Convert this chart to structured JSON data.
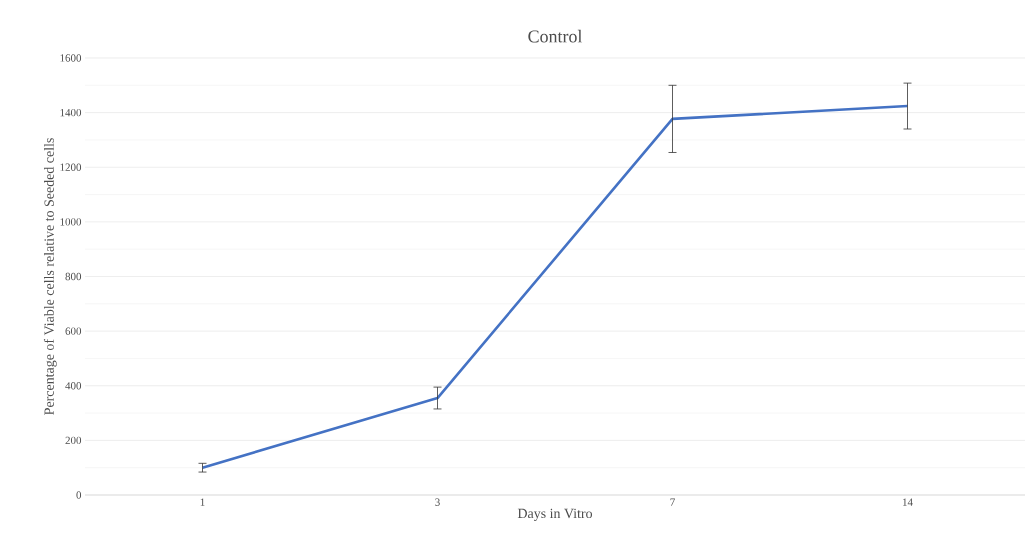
{
  "chart_data": {
    "type": "line",
    "title": "Control",
    "xlabel": "Days in Vitro",
    "ylabel": "Percentage of Viable cells relative to Seeded cells",
    "categories": [
      "1",
      "3",
      "7",
      "14"
    ],
    "series": [
      {
        "color": "#4472c4",
        "values": [
          100,
          355,
          1377,
          1424
        ],
        "errors": [
          16,
          40,
          123,
          84
        ]
      }
    ],
    "ylim": [
      0,
      1600
    ],
    "yticks": [
      0,
      200,
      400,
      600,
      800,
      1000,
      1200,
      1400,
      1600
    ],
    "grid": "y",
    "legend": false,
    "marker": "none",
    "line_style": "solid"
  }
}
